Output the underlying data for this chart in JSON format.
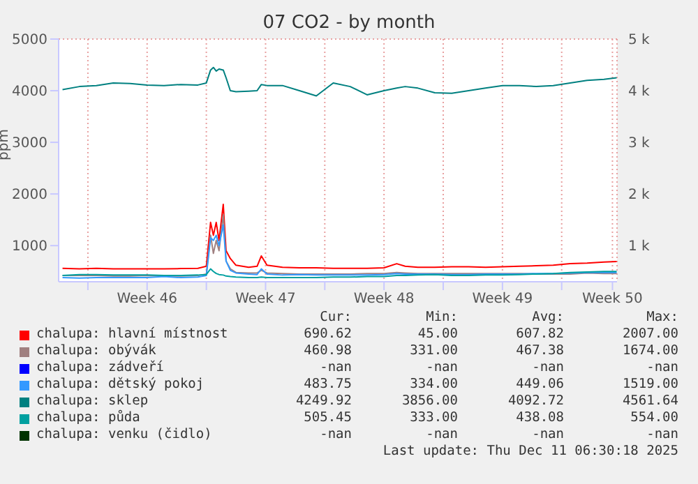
{
  "chart_data": {
    "type": "line",
    "title": "07 CO2 - by month",
    "ylabel": "ppm",
    "x": [
      "2025-11-08T12:00",
      "2025-11-09T12:00",
      "2025-11-10T12:00",
      "2025-11-11T12:00",
      "2025-11-12T12:00",
      "2025-11-13T12:00",
      "2025-11-14T12:00",
      "2025-11-15T12:00",
      "2025-11-16T12:00",
      "2025-11-17T00:00",
      "2025-11-17T06:00",
      "2025-11-17T10:00",
      "2025-11-17T14:00",
      "2025-11-17T18:00",
      "2025-11-18T00:00",
      "2025-11-18T04:00",
      "2025-11-18T10:00",
      "2025-11-18T18:00",
      "2025-11-19T12:00",
      "2025-11-20T00:00",
      "2025-11-20T06:00",
      "2025-11-20T14:00",
      "2025-11-21T12:00",
      "2025-11-22T12:00",
      "2025-11-23T12:00",
      "2025-11-24T12:00",
      "2025-11-25T12:00",
      "2025-11-26T12:00",
      "2025-11-27T12:00",
      "2025-11-28T06:00",
      "2025-11-28T18:00",
      "2025-11-29T12:00",
      "2025-11-30T12:00",
      "2025-12-01T12:00",
      "2025-12-02T12:00",
      "2025-12-03T12:00",
      "2025-12-04T12:00",
      "2025-12-05T12:00",
      "2025-12-06T12:00",
      "2025-12-07T12:00",
      "2025-12-08T12:00",
      "2025-12-09T12:00",
      "2025-12-10T12:00",
      "2025-12-11T06:00"
    ],
    "series": [
      {
        "name": "chalupa: hlavní místnost",
        "color": "#ff0000",
        "values": [
          560,
          550,
          560,
          550,
          550,
          550,
          550,
          555,
          560,
          600,
          1450,
          1200,
          1450,
          1100,
          1800,
          900,
          750,
          620,
          580,
          600,
          800,
          620,
          580,
          570,
          570,
          560,
          560,
          560,
          570,
          650,
          600,
          580,
          580,
          590,
          590,
          580,
          590,
          600,
          610,
          620,
          650,
          660,
          680,
          690
        ]
      },
      {
        "name": "chalupa: obývák",
        "color": "#a08080",
        "values": [
          420,
          420,
          420,
          410,
          410,
          420,
          410,
          410,
          420,
          450,
          1200,
          850,
          1100,
          900,
          1600,
          700,
          550,
          480,
          470,
          470,
          520,
          470,
          460,
          450,
          450,
          450,
          450,
          460,
          460,
          480,
          470,
          460,
          460,
          460,
          460,
          460,
          460,
          460,
          450,
          450,
          450,
          470,
          460,
          460
        ]
      },
      {
        "name": "chalupa: zádveří",
        "color": "#0000ff",
        "values": [
          null,
          null,
          null,
          null,
          null,
          null,
          null,
          null,
          null,
          null,
          null,
          null,
          null,
          null,
          null,
          null,
          null,
          null,
          null,
          null,
          null,
          null,
          null,
          null,
          null,
          null,
          null,
          null,
          null,
          null,
          null,
          null,
          null,
          null,
          null,
          null,
          null,
          null,
          null,
          null,
          null,
          null,
          null,
          null
        ]
      },
      {
        "name": "chalupa: dětský pokoj",
        "color": "#3399ff",
        "values": [
          380,
          370,
          380,
          380,
          380,
          380,
          400,
          380,
          390,
          420,
          1150,
          1100,
          1200,
          1000,
          1400,
          700,
          520,
          470,
          450,
          440,
          550,
          450,
          430,
          440,
          430,
          430,
          430,
          430,
          440,
          460,
          450,
          450,
          450,
          440,
          440,
          450,
          450,
          450,
          460,
          460,
          470,
          480,
          480,
          480
        ]
      },
      {
        "name": "chalupa: sklep",
        "color": "#008080",
        "values": [
          4020,
          4080,
          4100,
          4150,
          4140,
          4110,
          4100,
          4120,
          4110,
          4150,
          4400,
          4450,
          4380,
          4420,
          4400,
          4250,
          4000,
          3980,
          3990,
          4000,
          4120,
          4100,
          4100,
          4000,
          3900,
          4150,
          4080,
          3920,
          4000,
          4050,
          4080,
          4050,
          3960,
          3950,
          4000,
          4050,
          4100,
          4100,
          4080,
          4100,
          4150,
          4200,
          4220,
          4250
        ]
      },
      {
        "name": "chalupa: půda",
        "color": "#00a0a0",
        "values": [
          420,
          440,
          440,
          430,
          430,
          430,
          420,
          420,
          430,
          440,
          550,
          500,
          460,
          440,
          430,
          410,
          400,
          390,
          380,
          380,
          390,
          380,
          380,
          380,
          380,
          390,
          390,
          400,
          400,
          420,
          420,
          430,
          440,
          420,
          420,
          430,
          430,
          440,
          450,
          460,
          480,
          490,
          500,
          500
        ]
      },
      {
        "name": "chalupa: venku (čidlo)",
        "color": "#003300",
        "values": [
          null,
          null,
          null,
          null,
          null,
          null,
          null,
          null,
          null,
          null,
          null,
          null,
          null,
          null,
          null,
          null,
          null,
          null,
          null,
          null,
          null,
          null,
          null,
          null,
          null,
          null,
          null,
          null,
          null,
          null,
          null,
          null,
          null,
          null,
          null,
          null,
          null,
          null,
          null,
          null,
          null,
          null,
          null,
          null
        ]
      }
    ],
    "xlim": [
      "2025-11-08T06:30",
      "2025-12-11T06:30"
    ],
    "xticks": [
      {
        "value": "2025-11-10",
        "label": null
      },
      {
        "value": "2025-11-13T12:00",
        "label": "Week 46"
      },
      {
        "value": "2025-11-17",
        "label": null
      },
      {
        "value": "2025-11-20T12:00",
        "label": "Week 47"
      },
      {
        "value": "2025-11-24",
        "label": null
      },
      {
        "value": "2025-11-27T12:00",
        "label": "Week 48"
      },
      {
        "value": "2025-12-01",
        "label": null
      },
      {
        "value": "2025-12-04T12:00",
        "label": "Week 49"
      },
      {
        "value": "2025-12-08",
        "label": null
      },
      {
        "value": "2025-12-11T00:00",
        "label": "Week 50"
      }
    ],
    "ylim": [
      300,
      5000
    ],
    "yticks": [
      1000,
      2000,
      3000,
      4000,
      5000
    ],
    "y2lim": [
      300,
      5000
    ],
    "y2ticks": [
      {
        "value": 1000,
        "label": "1 k"
      },
      {
        "value": 2000,
        "label": "2 k"
      },
      {
        "value": 3000,
        "label": "3 k"
      },
      {
        "value": 4000,
        "label": "4 k"
      },
      {
        "value": 5000,
        "label": "5 k"
      }
    ],
    "grid": true,
    "legend": "bottom",
    "marker": "none",
    "line_style": "solid",
    "annotations": [
      "Cur:",
      "Min:",
      "Avg:",
      "Max:",
      "690.62",
      "45.00",
      "607.82",
      "2007.00",
      "460.98",
      "331.00",
      "467.38",
      "1674.00",
      "-nan",
      "-nan",
      "-nan",
      "-nan",
      "483.75",
      "334.00",
      "449.06",
      "1519.00",
      "4249.92",
      "3856.00",
      "4092.72",
      "4561.64",
      "505.45",
      "333.00",
      "438.08",
      "554.00",
      "-nan",
      "-nan",
      "-nan",
      "-nan",
      "Last update: Thu Dec 11 06:30:18 2025"
    ]
  }
}
